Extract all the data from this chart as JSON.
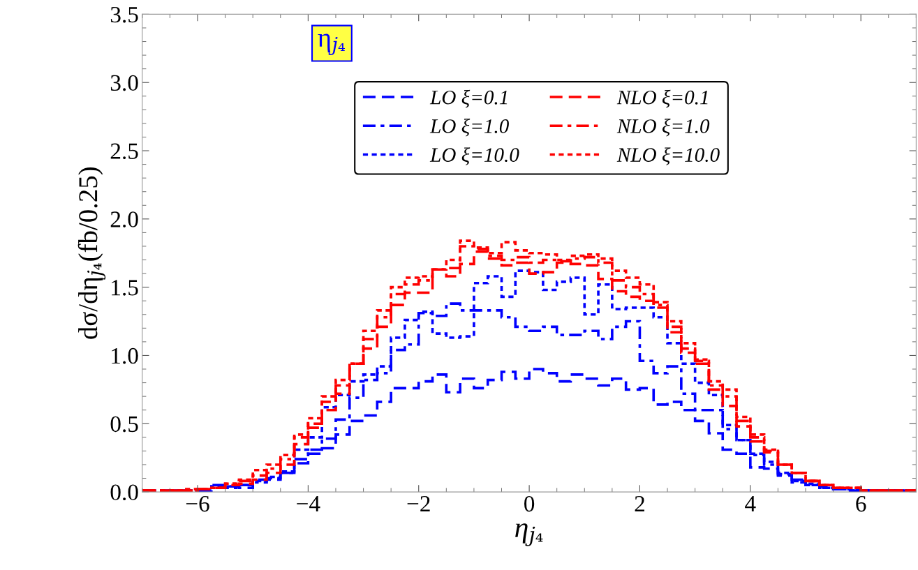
{
  "chart_data": {
    "type": "histogram",
    "xlabel": "η$_{j₄}$",
    "ylabel": "dσ/dη$_{j₄}$(fb/0.25)",
    "annotations": [
      "η$_{j₄}$"
    ],
    "bins": [
      -7.0,
      -6.75,
      -6.5,
      -6.25,
      -6.0,
      -5.75,
      -5.5,
      -5.25,
      -5.0,
      -4.75,
      -4.5,
      -4.25,
      -4.0,
      -3.75,
      -3.5,
      -3.25,
      -3.0,
      -2.75,
      -2.5,
      -2.25,
      -2.0,
      -1.75,
      -1.5,
      -1.25,
      -1.0,
      -0.75,
      -0.5,
      -0.25,
      0.0,
      0.25,
      0.5,
      0.75,
      1.0,
      1.25,
      1.5,
      1.75,
      2.0,
      2.25,
      2.5,
      2.75,
      3.0,
      3.25,
      3.5,
      3.75,
      4.0,
      4.25,
      4.5,
      4.75,
      5.0,
      5.25,
      5.5,
      5.75,
      6.0,
      6.25,
      6.5,
      6.75,
      7.0
    ],
    "series": [
      {
        "name": "LO ξ=0.1",
        "color": "#0000ff",
        "line_style": "dashed",
        "values": [
          0.01,
          0.01,
          0.01,
          0.01,
          0.01,
          0.05,
          0.04,
          0.03,
          0.09,
          0.09,
          0.14,
          0.24,
          0.28,
          0.32,
          0.42,
          0.52,
          0.56,
          0.66,
          0.76,
          0.76,
          0.81,
          0.86,
          0.73,
          0.83,
          0.76,
          0.82,
          0.88,
          0.83,
          0.9,
          0.87,
          0.81,
          0.86,
          0.83,
          0.78,
          0.83,
          0.75,
          0.76,
          0.64,
          0.66,
          0.6,
          0.52,
          0.43,
          0.31,
          0.28,
          0.18,
          0.17,
          0.12,
          0.07,
          0.05,
          0.04,
          0.02,
          0.01,
          0.01,
          0.01,
          0.01,
          0.01
        ]
      },
      {
        "name": "LO ξ=1.0",
        "color": "#0000fe",
        "line_style": "dashdot",
        "values": [
          0.01,
          0.01,
          0.01,
          0.01,
          0.01,
          0.04,
          0.03,
          0.05,
          0.07,
          0.1,
          0.14,
          0.21,
          0.31,
          0.39,
          0.53,
          0.69,
          0.82,
          0.87,
          1.04,
          1.08,
          1.31,
          1.29,
          1.38,
          1.33,
          1.33,
          1.33,
          1.28,
          1.21,
          1.18,
          1.21,
          1.15,
          1.15,
          1.18,
          1.12,
          1.21,
          1.25,
          0.96,
          0.87,
          0.92,
          0.72,
          0.6,
          0.6,
          0.46,
          0.38,
          0.27,
          0.2,
          0.13,
          0.09,
          0.05,
          0.03,
          0.02,
          0.01,
          0.01,
          0.01,
          0.01,
          0.01
        ]
      },
      {
        "name": "LO ξ=10.0",
        "color": "#0101fd",
        "line_style": "dotted",
        "values": [
          0.01,
          0.01,
          0.01,
          0.01,
          0.01,
          0.04,
          0.04,
          0.05,
          0.08,
          0.11,
          0.15,
          0.31,
          0.4,
          0.62,
          0.71,
          0.81,
          0.86,
          0.92,
          1.13,
          1.26,
          1.32,
          1.16,
          1.13,
          1.14,
          1.53,
          1.58,
          1.43,
          1.62,
          1.61,
          1.48,
          1.54,
          1.57,
          1.3,
          1.52,
          1.34,
          1.35,
          1.35,
          1.28,
          1.09,
          0.94,
          0.8,
          0.71,
          0.49,
          0.38,
          0.28,
          0.22,
          0.14,
          0.08,
          0.06,
          0.03,
          0.02,
          0.02,
          0.01,
          0.01,
          0.01,
          0.01
        ]
      },
      {
        "name": "NLO ξ=0.1",
        "color": "#ff0000",
        "line_style": "dashed",
        "values": [
          0.01,
          0.01,
          0.01,
          0.01,
          0.02,
          0.03,
          0.05,
          0.06,
          0.09,
          0.14,
          0.2,
          0.35,
          0.47,
          0.6,
          0.72,
          0.94,
          1.05,
          1.21,
          1.37,
          1.46,
          1.46,
          1.63,
          1.58,
          1.67,
          1.76,
          1.71,
          1.66,
          1.68,
          1.6,
          1.61,
          1.68,
          1.67,
          1.66,
          1.56,
          1.47,
          1.43,
          1.4,
          1.35,
          1.17,
          1.02,
          0.94,
          0.75,
          0.63,
          0.48,
          0.37,
          0.29,
          0.2,
          0.14,
          0.08,
          0.05,
          0.03,
          0.03,
          0.01,
          0.01,
          0.01,
          0.01
        ]
      },
      {
        "name": "NLO ξ=1.0",
        "color": "#fe0000",
        "line_style": "dashdot",
        "values": [
          0.01,
          0.01,
          0.01,
          0.01,
          0.02,
          0.03,
          0.06,
          0.08,
          0.12,
          0.17,
          0.24,
          0.4,
          0.5,
          0.66,
          0.78,
          0.94,
          1.12,
          1.28,
          1.45,
          1.52,
          1.55,
          1.63,
          1.64,
          1.8,
          1.78,
          1.73,
          1.7,
          1.72,
          1.68,
          1.7,
          1.69,
          1.71,
          1.72,
          1.68,
          1.55,
          1.5,
          1.45,
          1.37,
          1.21,
          1.05,
          0.96,
          0.78,
          0.7,
          0.52,
          0.4,
          0.3,
          0.2,
          0.14,
          0.08,
          0.05,
          0.03,
          0.03,
          0.01,
          0.01,
          0.01,
          0.01
        ]
      },
      {
        "name": "NLO ξ=10.0",
        "color": "#fd0101",
        "line_style": "dotted",
        "values": [
          0.01,
          0.01,
          0.01,
          0.02,
          0.02,
          0.03,
          0.06,
          0.09,
          0.16,
          0.2,
          0.27,
          0.42,
          0.54,
          0.7,
          0.82,
          0.94,
          1.18,
          1.33,
          1.5,
          1.57,
          1.58,
          1.63,
          1.7,
          1.84,
          1.79,
          1.75,
          1.83,
          1.77,
          1.75,
          1.74,
          1.7,
          1.73,
          1.74,
          1.71,
          1.62,
          1.57,
          1.52,
          1.39,
          1.25,
          1.09,
          0.97,
          0.81,
          0.75,
          0.55,
          0.42,
          0.31,
          0.2,
          0.14,
          0.08,
          0.05,
          0.03,
          0.03,
          0.01,
          0.01,
          0.01,
          0.01
        ]
      }
    ],
    "xlim": [
      -7,
      7
    ],
    "xticks": [
      {
        "value": -6,
        "label": "−6"
      },
      {
        "value": -4,
        "label": "−4"
      },
      {
        "value": -2,
        "label": "−2"
      },
      0,
      2,
      4,
      6
    ],
    "ylim": [
      0,
      3.5
    ],
    "yticks": [
      {
        "value": 0,
        "label": "0.0"
      },
      0.5,
      {
        "value": 1,
        "label": "1.0"
      },
      1.5,
      {
        "value": 2,
        "label": "2.0"
      },
      2.5,
      {
        "value": 3,
        "label": "3.0"
      },
      3.5
    ],
    "grid": false,
    "legend": "top right"
  }
}
